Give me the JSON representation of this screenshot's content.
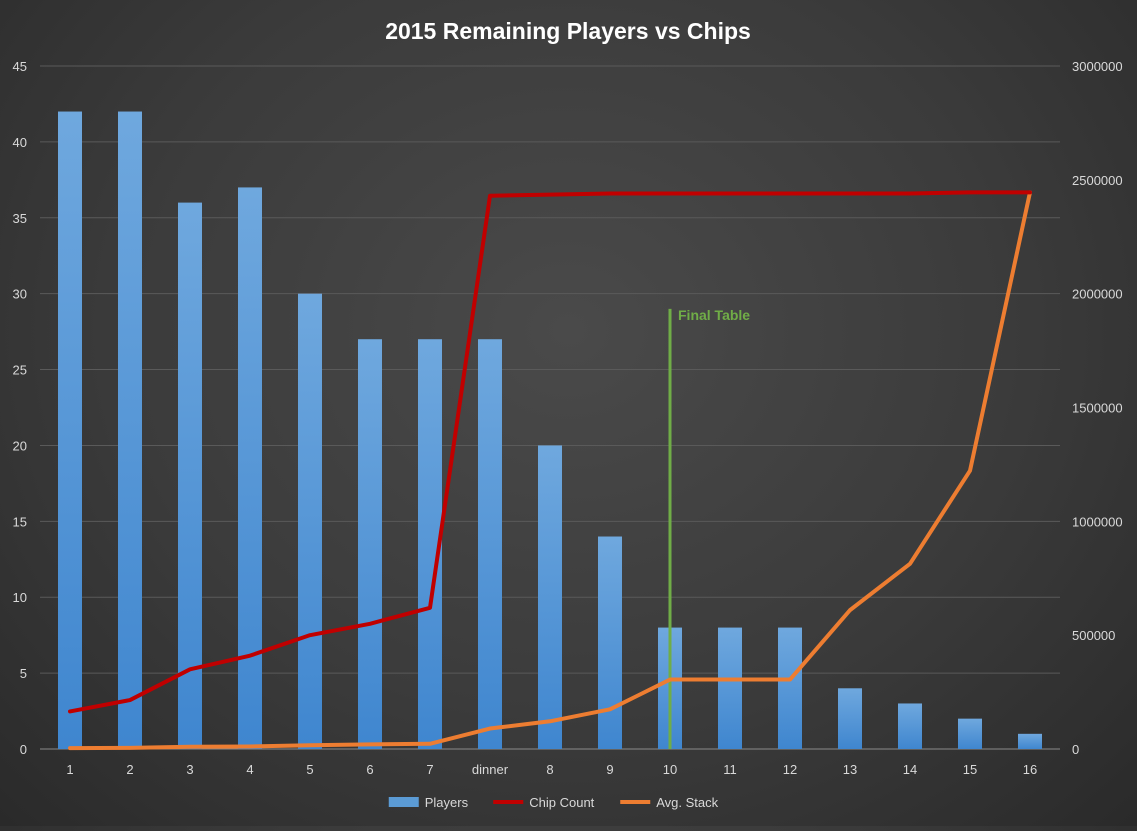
{
  "chart_data": {
    "type": "bar",
    "title": "2015 Remaining Players vs Chips",
    "categories": [
      "1",
      "2",
      "3",
      "4",
      "5",
      "6",
      "7",
      "dinner",
      "8",
      "9",
      "10",
      "11",
      "12",
      "13",
      "14",
      "15",
      "16"
    ],
    "y_left": {
      "min": 0,
      "max": 45,
      "step": 5,
      "ticks": [
        "0",
        "5",
        "10",
        "15",
        "20",
        "25",
        "30",
        "35",
        "40",
        "45"
      ]
    },
    "y_right": {
      "min": 0,
      "max": 3000000,
      "step": 500000,
      "ticks": [
        "0",
        "500000",
        "1000000",
        "1500000",
        "2000000",
        "2500000",
        "3000000"
      ]
    },
    "grid": true,
    "legend_position": "bottom",
    "series": [
      {
        "name": "Players",
        "type": "bar",
        "axis": "left",
        "color": "#5b9bd5",
        "values": [
          42,
          42,
          36,
          37,
          30,
          27,
          27,
          27,
          20,
          14,
          8,
          8,
          8,
          4,
          3,
          2,
          1
        ]
      },
      {
        "name": "Chip Count",
        "type": "line",
        "axis": "right",
        "color": "#c00000",
        "values": [
          165000,
          215000,
          350000,
          410000,
          500000,
          550000,
          620000,
          2430000,
          2435000,
          2440000,
          2440000,
          2440000,
          2440000,
          2440000,
          2440000,
          2445000,
          2445000
        ]
      },
      {
        "name": "Avg. Stack",
        "type": "line",
        "axis": "right",
        "color": "#ed7d31",
        "values": [
          3929,
          5119,
          9722,
          11081,
          16667,
          20370,
          22963,
          90000,
          121750,
          174286,
          305000,
          305000,
          305000,
          610000,
          813333,
          1222500,
          2445000
        ]
      }
    ],
    "annotations": [
      {
        "text": "Final Table",
        "category": "10",
        "y_top": 29,
        "color": "#70ad47"
      }
    ]
  }
}
